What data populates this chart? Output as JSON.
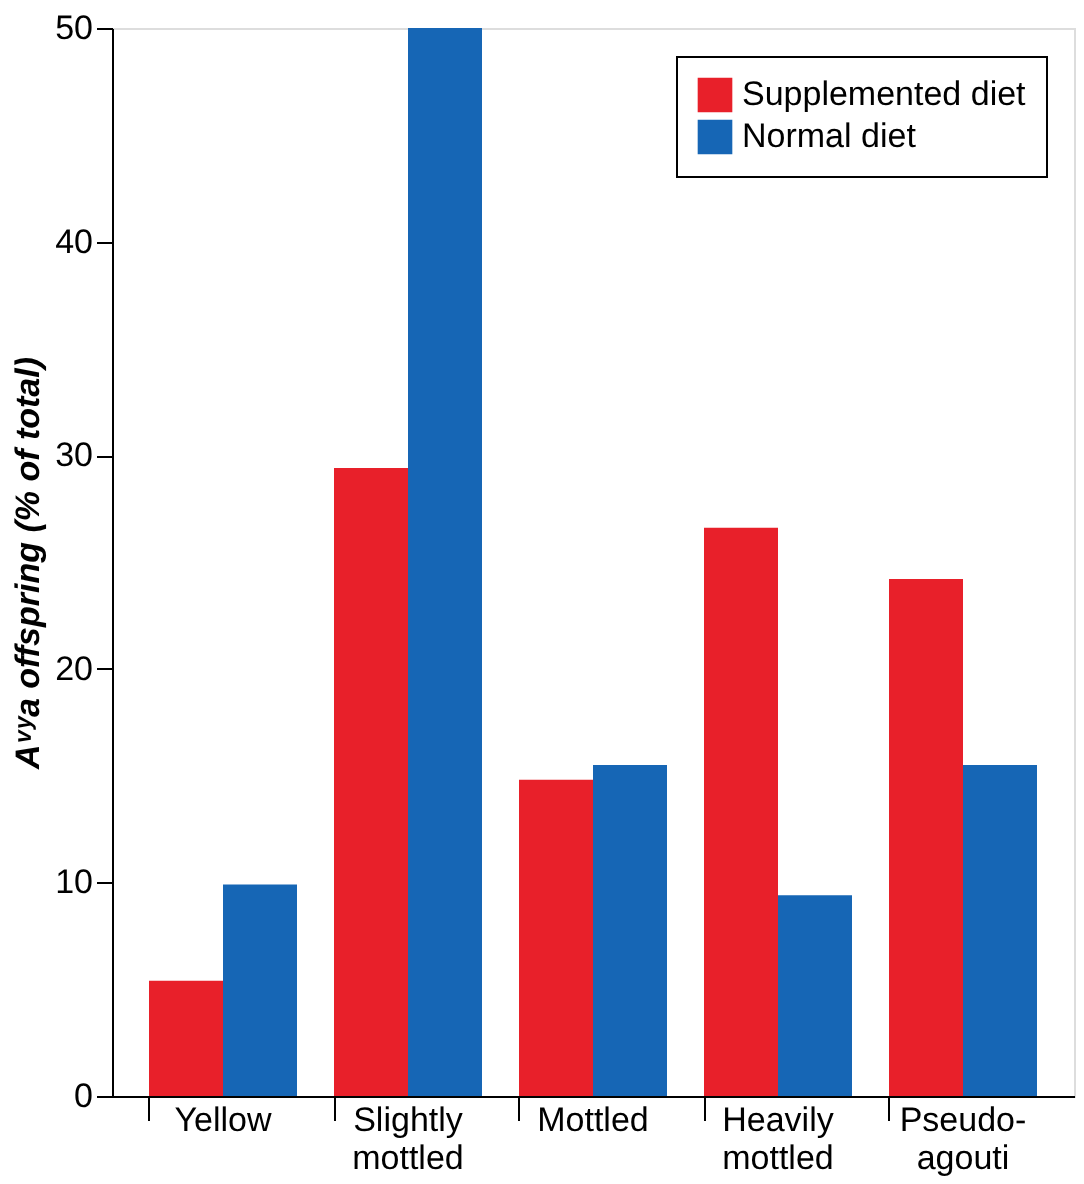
{
  "chart_data": {
    "type": "bar",
    "ylabel": "Aᵛʸa offspring (% of total)",
    "categories": [
      "Yellow",
      "Slightly mottled",
      "Mottled",
      "Heavily mottled",
      "Pseudo-agouti"
    ],
    "series": [
      {
        "name": "Supplemented diet",
        "color": "#e8202a",
        "values": [
          5.4,
          29.4,
          14.8,
          26.6,
          24.2
        ]
      },
      {
        "name": "Normal diet",
        "color": "#1666b5",
        "values": [
          9.9,
          50,
          15.5,
          9.4,
          15.5
        ]
      }
    ],
    "ylim": [
      0,
      50
    ],
    "yticks": [
      0,
      10,
      20,
      30,
      40,
      50
    ],
    "grid": false,
    "legend": "top right"
  }
}
